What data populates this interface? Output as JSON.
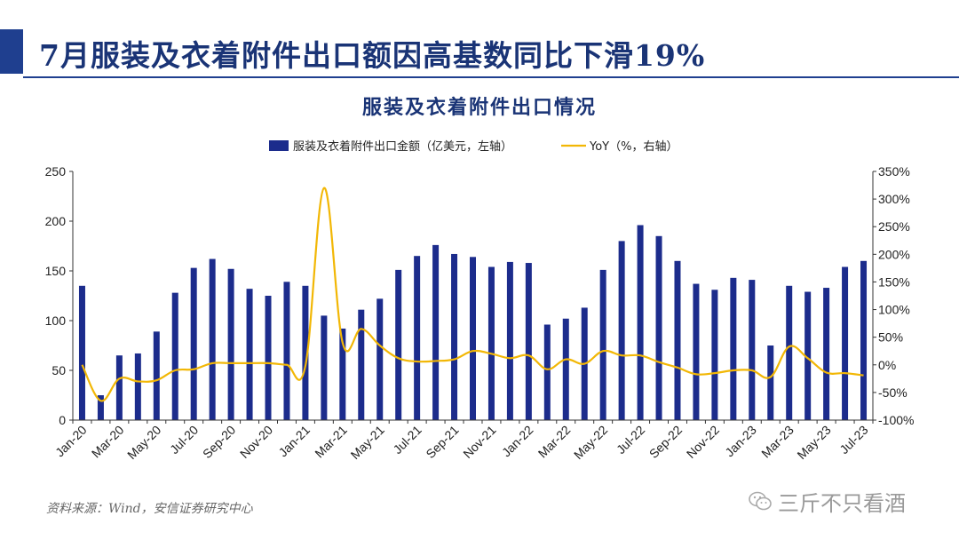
{
  "header": {
    "title": "7月服装及衣着附件出口额因高基数同比下滑19%"
  },
  "footer": {
    "source": "资料来源：Wind，安信证券研究中心",
    "watermark": "三斤不只看酒"
  },
  "colors": {
    "bar": "#1c2c8c",
    "line": "#f2b705",
    "title": "#1a3476"
  },
  "chart_data": {
    "type": "bar",
    "title": "服装及衣着附件出口情况",
    "categories": [
      "Jan-20",
      "Feb-20",
      "Mar-20",
      "Apr-20",
      "May-20",
      "Jun-20",
      "Jul-20",
      "Aug-20",
      "Sep-20",
      "Oct-20",
      "Nov-20",
      "Dec-20",
      "Jan-21",
      "Feb-21",
      "Mar-21",
      "Apr-21",
      "May-21",
      "Jun-21",
      "Jul-21",
      "Aug-21",
      "Sep-21",
      "Oct-21",
      "Nov-21",
      "Dec-21",
      "Jan-22",
      "Feb-22",
      "Mar-22",
      "Apr-22",
      "May-22",
      "Jun-22",
      "Jul-22",
      "Aug-22",
      "Sep-22",
      "Oct-22",
      "Nov-22",
      "Dec-22",
      "Jan-23",
      "Feb-23",
      "Mar-23",
      "Apr-23",
      "May-23",
      "Jun-23",
      "Jul-23"
    ],
    "x_tick_labels": [
      "Jan-20",
      "Mar-20",
      "May-20",
      "Jul-20",
      "Sep-20",
      "Nov-20",
      "Jan-21",
      "Mar-21",
      "May-21",
      "Jul-21",
      "Sep-21",
      "Nov-21",
      "Jan-22",
      "Mar-22",
      "May-22",
      "Jul-22",
      "Sep-22",
      "Nov-22",
      "Jan-23",
      "Mar-23",
      "May-23",
      "Jul-23"
    ],
    "series": [
      {
        "name": "服装及衣着附件出口金额（亿美元，左轴）",
        "type": "bar",
        "axis": "left",
        "values": [
          135,
          25,
          65,
          67,
          89,
          128,
          153,
          162,
          152,
          132,
          125,
          139,
          135,
          105,
          92,
          111,
          122,
          151,
          165,
          176,
          167,
          164,
          154,
          159,
          158,
          96,
          102,
          113,
          151,
          180,
          196,
          185,
          160,
          137,
          131,
          143,
          141,
          75,
          135,
          129,
          133,
          154,
          160
        ]
      },
      {
        "name": "YoY（%，右轴）",
        "type": "line",
        "axis": "right",
        "values": [
          0,
          -65,
          -25,
          -30,
          -28,
          -10,
          -8,
          3,
          3,
          3,
          3,
          0,
          -2,
          320,
          40,
          65,
          35,
          12,
          6,
          7,
          10,
          25,
          20,
          12,
          17,
          -8,
          10,
          2,
          25,
          17,
          17,
          5,
          -5,
          -17,
          -15,
          -10,
          -10,
          -22,
          33,
          12,
          -14,
          -15,
          -19
        ]
      }
    ],
    "y_left": {
      "min": 0,
      "max": 250,
      "ticks": [
        "0",
        "50",
        "100",
        "150",
        "200",
        "250"
      ]
    },
    "y_right": {
      "min": -100,
      "max": 350,
      "ticks": [
        "-100%",
        "-50%",
        "0%",
        "50%",
        "100%",
        "150%",
        "200%",
        "250%",
        "300%",
        "350%"
      ]
    },
    "legend_position": "top-center",
    "grid": false
  }
}
